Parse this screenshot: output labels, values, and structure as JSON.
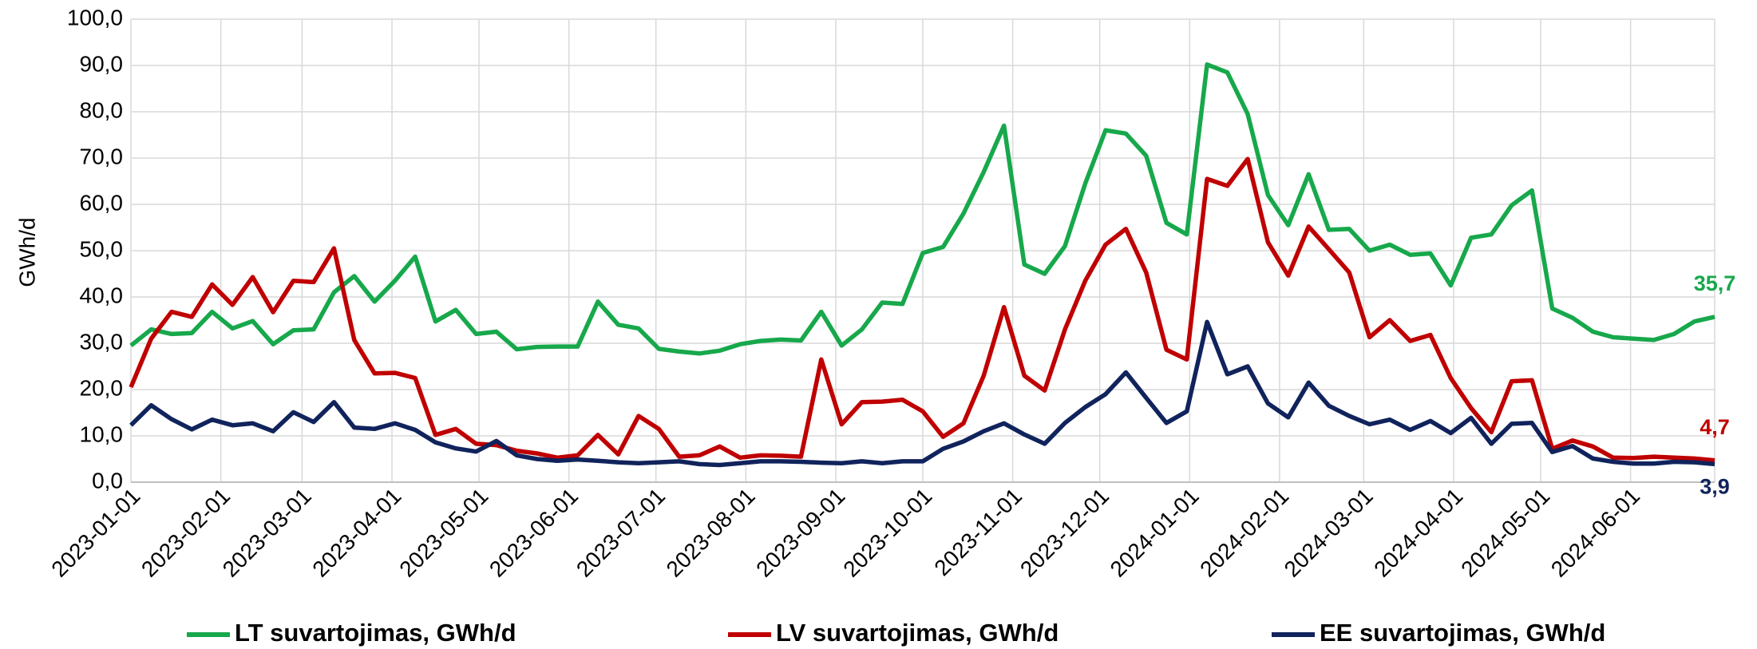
{
  "chart_data": {
    "type": "line",
    "ylabel": "GWh/d",
    "x": [
      "2023-01-01",
      "2023-01-08",
      "2023-01-15",
      "2023-01-22",
      "2023-01-29",
      "2023-02-05",
      "2023-02-12",
      "2023-02-19",
      "2023-02-26",
      "2023-03-05",
      "2023-03-12",
      "2023-03-19",
      "2023-03-26",
      "2023-04-02",
      "2023-04-09",
      "2023-04-16",
      "2023-04-23",
      "2023-04-30",
      "2023-05-07",
      "2023-05-14",
      "2023-05-21",
      "2023-05-28",
      "2023-06-04",
      "2023-06-11",
      "2023-06-18",
      "2023-06-25",
      "2023-07-02",
      "2023-07-09",
      "2023-07-16",
      "2023-07-23",
      "2023-07-30",
      "2023-08-06",
      "2023-08-13",
      "2023-08-20",
      "2023-08-27",
      "2023-09-03",
      "2023-09-10",
      "2023-09-17",
      "2023-09-24",
      "2023-10-01",
      "2023-10-08",
      "2023-10-15",
      "2023-10-22",
      "2023-10-29",
      "2023-11-05",
      "2023-11-12",
      "2023-11-19",
      "2023-11-26",
      "2023-12-03",
      "2023-12-10",
      "2023-12-17",
      "2023-12-24",
      "2023-12-31",
      "2024-01-07",
      "2024-01-14",
      "2024-01-21",
      "2024-01-28",
      "2024-02-04",
      "2024-02-11",
      "2024-02-18",
      "2024-02-25",
      "2024-03-03",
      "2024-03-10",
      "2024-03-17",
      "2024-03-24",
      "2024-03-31",
      "2024-04-07",
      "2024-04-14",
      "2024-04-21",
      "2024-04-28",
      "2024-05-05",
      "2024-05-12",
      "2024-05-19",
      "2024-05-26",
      "2024-06-02",
      "2024-06-09",
      "2024-06-16",
      "2024-06-23",
      "2024-06-30"
    ],
    "series": [
      {
        "name": "LT suvartojimas, GWh/d",
        "color": "#17a84b",
        "values": [
          29.5,
          33,
          32,
          32.2,
          36.8,
          33.2,
          34.8,
          29.8,
          32.8,
          33,
          41,
          44.5,
          39,
          43.5,
          48.7,
          34.7,
          37.2,
          32,
          32.5,
          28.7,
          29.2,
          29.3,
          29.3,
          39,
          34,
          33.2,
          28.8,
          28.2,
          27.8,
          28.4,
          29.8,
          30.5,
          30.8,
          30.6,
          36.8,
          29.5,
          33,
          38.8,
          38.5,
          49.5,
          50.8,
          58,
          67,
          77,
          47,
          45,
          51,
          64.5,
          76,
          75.3,
          70.5,
          56,
          53.5,
          90.2,
          88.5,
          79.5,
          62,
          55.5,
          66.5,
          54.5,
          54.7,
          50,
          51.3,
          49.1,
          49.4,
          42.5,
          52.8,
          53.5,
          59.8,
          63,
          37.5,
          35.5,
          32.5,
          31.3,
          31,
          30.7,
          32,
          34.7,
          35.7
        ],
        "value_labels": [
          null,
          null,
          null,
          null,
          null,
          null,
          null,
          null,
          null,
          null,
          null,
          null,
          null,
          null,
          null,
          null,
          null,
          null,
          null,
          null,
          null,
          null,
          null,
          null,
          null,
          null,
          null,
          null,
          null,
          null,
          null,
          null,
          null,
          null,
          null,
          null,
          null,
          null,
          null,
          null,
          null,
          null,
          null,
          null,
          null,
          null,
          null,
          null,
          null,
          null,
          null,
          null,
          null,
          null,
          null,
          null,
          null,
          null,
          null,
          null,
          null,
          null,
          null,
          null,
          null,
          null,
          null,
          null,
          null,
          null,
          null,
          null,
          null,
          null,
          null,
          null,
          null,
          null,
          "35,7"
        ]
      },
      {
        "name": "LV suvartojimas, GWh/d",
        "color": "#c00000",
        "values": [
          20.5,
          31,
          36.8,
          35.7,
          42.7,
          38.3,
          44.3,
          36.7,
          43.5,
          43.2,
          50.5,
          30.7,
          23.5,
          23.6,
          22.5,
          10.2,
          11.5,
          8.3,
          8,
          6.8,
          6.2,
          5.3,
          5.8,
          10.2,
          6,
          14.3,
          11.5,
          5.5,
          5.8,
          7.7,
          5.3,
          5.8,
          5.7,
          5.5,
          26.5,
          12.5,
          17.3,
          17.4,
          17.8,
          15.3,
          9.8,
          12.7,
          23,
          37.8,
          23,
          19.8,
          33,
          43.5,
          51.3,
          54.7,
          45.3,
          28.6,
          26.5,
          65.5,
          64,
          69.8,
          51.8,
          44.6,
          55.2,
          50.3,
          45.3,
          31.3,
          35,
          30.5,
          31.8,
          22.5,
          16,
          10.8,
          21.8,
          22,
          7.2,
          9,
          7.7,
          5.3,
          5.2,
          5.5,
          5.3,
          5.1,
          4.7
        ],
        "value_labels": [
          null,
          null,
          null,
          null,
          null,
          null,
          null,
          null,
          null,
          null,
          null,
          null,
          null,
          null,
          null,
          null,
          null,
          null,
          null,
          null,
          null,
          null,
          null,
          null,
          null,
          null,
          null,
          null,
          null,
          null,
          null,
          null,
          null,
          null,
          null,
          null,
          null,
          null,
          null,
          null,
          null,
          null,
          null,
          null,
          null,
          null,
          null,
          null,
          null,
          null,
          null,
          null,
          null,
          null,
          null,
          null,
          null,
          null,
          null,
          null,
          null,
          null,
          null,
          null,
          null,
          null,
          null,
          null,
          null,
          null,
          null,
          null,
          null,
          null,
          null,
          null,
          null,
          null,
          "4,7"
        ]
      },
      {
        "name": "EE suvartojimas, GWh/d",
        "color": "#10235c",
        "values": [
          12.3,
          16.6,
          13.6,
          11.4,
          13.5,
          12.3,
          12.7,
          11,
          15.1,
          13,
          17.3,
          11.8,
          11.5,
          12.7,
          11.3,
          8.6,
          7.3,
          6.6,
          8.9,
          5.8,
          5,
          4.6,
          4.9,
          4.6,
          4.3,
          4.1,
          4.3,
          4.5,
          3.9,
          3.7,
          4.1,
          4.5,
          4.5,
          4.4,
          4.2,
          4.1,
          4.5,
          4.1,
          4.5,
          4.5,
          7.2,
          8.8,
          11,
          12.7,
          10.3,
          8.3,
          12.8,
          16.2,
          19,
          23.7,
          18.2,
          12.8,
          15.3,
          34.6,
          23.3,
          25,
          17,
          14,
          21.5,
          16.5,
          14.3,
          12.5,
          13.5,
          11.3,
          13.2,
          10.6,
          13.9,
          8.3,
          12.6,
          12.8,
          6.5,
          7.8,
          5.1,
          4.4,
          4,
          4,
          4.4,
          4.3,
          3.9
        ],
        "value_labels": [
          null,
          null,
          null,
          null,
          null,
          null,
          null,
          null,
          null,
          null,
          null,
          null,
          null,
          null,
          null,
          null,
          null,
          null,
          null,
          null,
          null,
          null,
          null,
          null,
          null,
          null,
          null,
          null,
          null,
          null,
          null,
          null,
          null,
          null,
          null,
          null,
          null,
          null,
          null,
          null,
          null,
          null,
          null,
          null,
          null,
          null,
          null,
          null,
          null,
          null,
          null,
          null,
          null,
          null,
          null,
          null,
          null,
          null,
          null,
          null,
          null,
          null,
          null,
          null,
          null,
          null,
          null,
          null,
          null,
          null,
          null,
          null,
          null,
          null,
          null,
          null,
          null,
          null,
          "3,9"
        ]
      }
    ],
    "xlim": [
      "2023-01-01",
      "2024-06-30"
    ],
    "xticks": [
      "2023-01-01",
      "2023-02-01",
      "2023-03-01",
      "2023-04-01",
      "2023-05-01",
      "2023-06-01",
      "2023-07-01",
      "2023-08-01",
      "2023-09-01",
      "2023-10-01",
      "2023-11-01",
      "2023-12-01",
      "2024-01-01",
      "2024-02-01",
      "2024-03-01",
      "2024-04-01",
      "2024-05-01",
      "2024-06-01"
    ],
    "ylim": [
      0,
      100
    ],
    "yticks": [
      {
        "value": 0,
        "label": "0,0"
      },
      {
        "value": 10,
        "label": "10,0"
      },
      {
        "value": 20,
        "label": "20,0"
      },
      {
        "value": 30,
        "label": "30,0"
      },
      {
        "value": 40,
        "label": "40,0"
      },
      {
        "value": 50,
        "label": "50,0"
      },
      {
        "value": 60,
        "label": "60,0"
      },
      {
        "value": 70,
        "label": "70,0"
      },
      {
        "value": 80,
        "label": "80,0"
      },
      {
        "value": 90,
        "label": "90,0"
      },
      {
        "value": 100,
        "label": "100,0"
      }
    ],
    "grid": true,
    "legend": "bottom"
  }
}
